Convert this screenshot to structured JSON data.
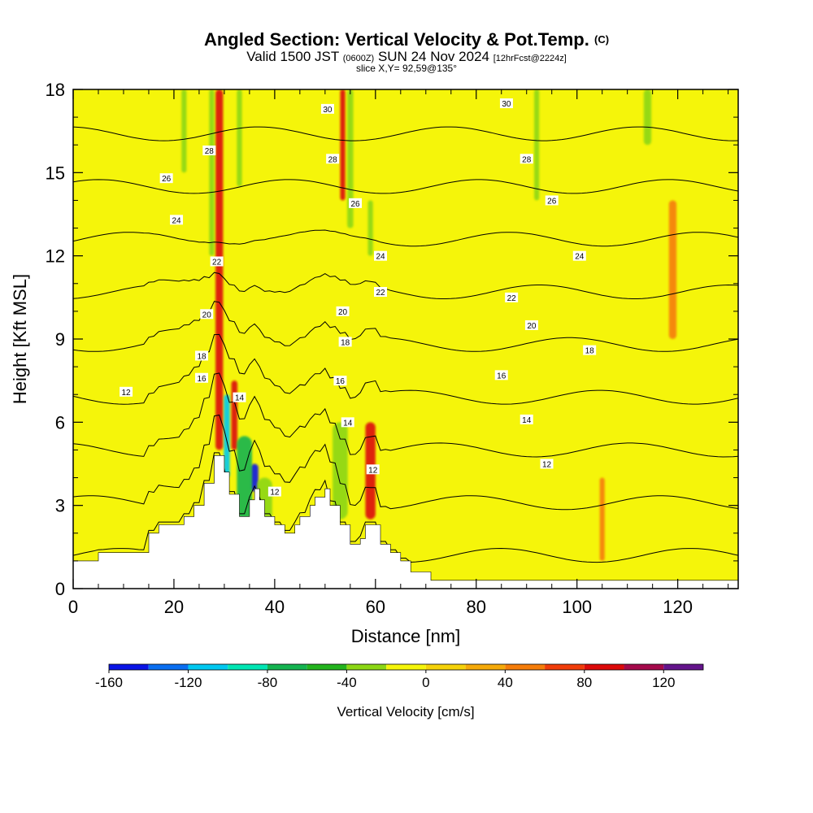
{
  "header": {
    "title": "Angled Section: Vertical Velocity & Pot.Temp.",
    "title_suffix": "(C)",
    "valid_a": "Valid 1500 JST",
    "valid_b": "(0600Z)",
    "valid_c": "SUN 24 Nov 2024",
    "valid_d": "[12hrFcst@2224z]",
    "slice": "slice X,Y= 92,59@135°"
  },
  "colorbar": {
    "label": "Vertical Velocity [cm/s]",
    "tick_labels": [
      "-160",
      "-120",
      "-80",
      "-40",
      "0",
      "40",
      "80",
      "120"
    ],
    "tick_values": [
      -160,
      -120,
      -80,
      -40,
      0,
      40,
      80,
      120
    ],
    "range": [
      -160,
      140
    ],
    "step": 20,
    "colors": [
      "#0a14e6",
      "#0a6ef0",
      "#00c8f0",
      "#00e6b4",
      "#14b450",
      "#23b41e",
      "#8cd714",
      "#f5f50a",
      "#f5d20a",
      "#f5aa0a",
      "#f57d0a",
      "#f03c0a",
      "#dc0a0a",
      "#a50a4b",
      "#64148c"
    ]
  },
  "chart_data": {
    "type": "heatmap",
    "title": "Angled Section: Vertical Velocity & Pot.Temp. (C)",
    "xlabel": "Distance [nm]",
    "ylabel": "Height [Kft MSL]",
    "xlim": [
      0,
      132
    ],
    "ylim": [
      0,
      18
    ],
    "x_ticks": [
      0,
      20,
      40,
      60,
      80,
      100,
      120
    ],
    "y_ticks": [
      0,
      3,
      6,
      9,
      12,
      15,
      18
    ],
    "x_tick_labels": [
      "0",
      "20",
      "40",
      "60",
      "80",
      "100",
      "120"
    ],
    "y_tick_labels": [
      "0",
      "3",
      "6",
      "9",
      "12",
      "15",
      "18"
    ],
    "field": "Vertical Velocity",
    "units": "cm/s",
    "background_value": 0,
    "terrain": {
      "x": [
        0,
        5,
        5,
        15,
        15,
        17,
        17,
        22,
        22,
        24,
        24,
        26,
        26,
        28,
        28,
        30,
        30,
        31,
        31,
        33,
        33,
        35,
        35,
        36,
        36,
        37,
        37,
        38,
        38,
        40,
        40,
        42,
        42,
        44,
        44,
        45,
        45,
        47,
        47,
        48,
        48,
        50,
        50,
        51,
        51,
        53,
        53,
        55,
        55,
        57,
        57,
        58,
        58,
        61,
        61,
        63,
        63,
        65,
        65,
        67,
        67,
        71,
        71,
        132
      ],
      "y": [
        1.0,
        1.0,
        1.3,
        1.3,
        2.0,
        2.0,
        2.3,
        2.3,
        2.6,
        2.6,
        3.0,
        3.0,
        3.8,
        3.8,
        4.8,
        4.8,
        4.2,
        4.2,
        3.4,
        3.4,
        2.6,
        2.6,
        3.2,
        3.2,
        3.6,
        3.6,
        3.2,
        3.2,
        2.6,
        2.6,
        2.3,
        2.3,
        2.0,
        2.0,
        2.3,
        2.3,
        2.6,
        2.6,
        3.0,
        3.0,
        3.3,
        3.3,
        3.6,
        3.6,
        3.0,
        3.0,
        2.3,
        2.3,
        1.6,
        1.6,
        1.8,
        1.8,
        2.3,
        2.3,
        1.6,
        1.6,
        1.3,
        1.3,
        1.0,
        1.0,
        0.6,
        0.6,
        0.3,
        0.3
      ]
    },
    "velocity_features": [
      {
        "x": 29,
        "y_base": 5,
        "y_top": 18,
        "value": 90,
        "width": 1.5
      },
      {
        "x": 30.5,
        "y_base": 4,
        "y_top": 7,
        "value": -120,
        "width": 1.2
      },
      {
        "x": 32,
        "y_base": 5,
        "y_top": 7.5,
        "value": 80,
        "width": 1.2
      },
      {
        "x": 36,
        "y_base": 3.5,
        "y_top": 4.5,
        "value": -160,
        "width": 1.5
      },
      {
        "x": 34,
        "y_base": 2.5,
        "y_top": 5.5,
        "value": -80,
        "width": 3
      },
      {
        "x": 38,
        "y_base": 2,
        "y_top": 4,
        "value": -40,
        "width": 3
      },
      {
        "x": 53,
        "y_base": 2.5,
        "y_top": 6,
        "value": -40,
        "width": 3
      },
      {
        "x": 59,
        "y_base": 2.5,
        "y_top": 6,
        "value": 80,
        "width": 2
      },
      {
        "x": 53.5,
        "y_base": 14,
        "y_top": 18,
        "value": 80,
        "width": 1
      },
      {
        "x": 55,
        "y_base": 13,
        "y_top": 18,
        "value": -40,
        "width": 1.2
      },
      {
        "x": 22,
        "y_base": 15,
        "y_top": 18,
        "value": -40,
        "width": 1
      },
      {
        "x": 27.5,
        "y_base": 12,
        "y_top": 18,
        "value": -40,
        "width": 1
      },
      {
        "x": 33,
        "y_base": 14.5,
        "y_top": 18,
        "value": -40,
        "width": 1
      },
      {
        "x": 59,
        "y_base": 12,
        "y_top": 14,
        "value": -40,
        "width": 1
      },
      {
        "x": 92,
        "y_base": 14,
        "y_top": 18,
        "value": -40,
        "width": 1
      },
      {
        "x": 114,
        "y_base": 16,
        "y_top": 18,
        "value": -40,
        "width": 1.5
      },
      {
        "x": 105,
        "y_base": 1,
        "y_top": 4,
        "value": 40,
        "width": 1
      },
      {
        "x": 119,
        "y_base": 9,
        "y_top": 14,
        "value": 40,
        "width": 1.5
      }
    ],
    "theta_contours": [
      {
        "value": 12,
        "label": "12"
      },
      {
        "value": 14,
        "label": "14"
      },
      {
        "value": 16,
        "label": "16"
      },
      {
        "value": 18,
        "label": "18"
      },
      {
        "value": 20,
        "label": "20"
      },
      {
        "value": 22,
        "label": "22"
      },
      {
        "value": 24,
        "label": "24"
      },
      {
        "value": 26,
        "label": "26"
      },
      {
        "value": 28,
        "label": "28"
      },
      {
        "value": 30,
        "label": "30"
      }
    ],
    "contour_labels": [
      {
        "text": "12",
        "x": 10.5,
        "y": 7.1
      },
      {
        "text": "16",
        "x": 25.5,
        "y": 7.6
      },
      {
        "text": "18",
        "x": 25.5,
        "y": 8.4
      },
      {
        "text": "20",
        "x": 26.5,
        "y": 9.9
      },
      {
        "text": "22",
        "x": 28.5,
        "y": 11.8
      },
      {
        "text": "24",
        "x": 20.5,
        "y": 13.3
      },
      {
        "text": "26",
        "x": 18.5,
        "y": 14.8
      },
      {
        "text": "28",
        "x": 27,
        "y": 15.8
      },
      {
        "text": "30",
        "x": 50.5,
        "y": 17.3
      },
      {
        "text": "14",
        "x": 33,
        "y": 6.9
      },
      {
        "text": "12",
        "x": 40,
        "y": 3.5
      },
      {
        "text": "28",
        "x": 51.5,
        "y": 15.5
      },
      {
        "text": "26",
        "x": 56,
        "y": 13.9
      },
      {
        "text": "24",
        "x": 61,
        "y": 12.0
      },
      {
        "text": "22",
        "x": 61,
        "y": 10.7
      },
      {
        "text": "20",
        "x": 53.5,
        "y": 10.0
      },
      {
        "text": "18",
        "x": 54,
        "y": 8.9
      },
      {
        "text": "16",
        "x": 53,
        "y": 7.5
      },
      {
        "text": "14",
        "x": 54.5,
        "y": 6.0
      },
      {
        "text": "12",
        "x": 59.5,
        "y": 4.3
      },
      {
        "text": "30",
        "x": 86,
        "y": 17.5
      },
      {
        "text": "28",
        "x": 90,
        "y": 15.5
      },
      {
        "text": "26",
        "x": 95,
        "y": 14.0
      },
      {
        "text": "24",
        "x": 100.5,
        "y": 12.0
      },
      {
        "text": "22",
        "x": 87,
        "y": 10.5
      },
      {
        "text": "20",
        "x": 91,
        "y": 9.5
      },
      {
        "text": "18",
        "x": 102.5,
        "y": 8.6
      },
      {
        "text": "16",
        "x": 85,
        "y": 7.7
      },
      {
        "text": "14",
        "x": 90,
        "y": 6.1
      },
      {
        "text": "12",
        "x": 94,
        "y": 4.5
      }
    ]
  }
}
